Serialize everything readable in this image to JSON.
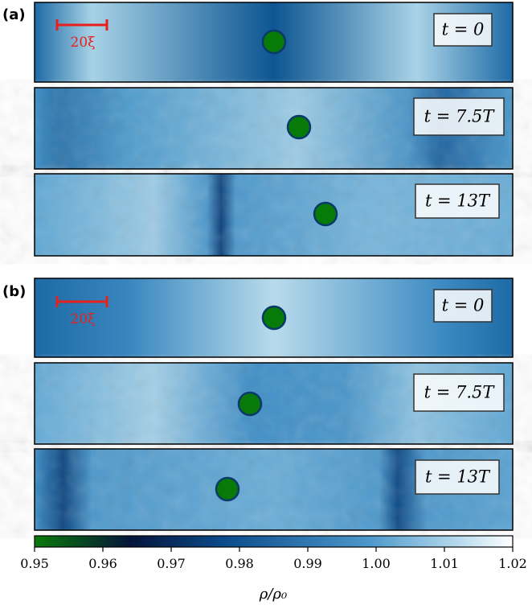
{
  "groups": [
    {
      "label": "(a)",
      "scale_label": "20ξ",
      "panels": [
        {
          "time": "t = 0"
        },
        {
          "time": "t = 7.5T"
        },
        {
          "time": "t = 13T"
        }
      ]
    },
    {
      "label": "(b)",
      "scale_label": "20ξ",
      "panels": [
        {
          "time": "t = 0"
        },
        {
          "time": "t = 7.5T"
        },
        {
          "time": "t = 13T"
        }
      ]
    }
  ],
  "colorbar": {
    "xlim": [
      0.95,
      1.02
    ],
    "xticks": [
      0.95,
      0.96,
      0.97,
      0.98,
      0.99,
      {
        "value": 1,
        "label": "1.00"
      },
      1.01,
      1.02
    ],
    "label": "ρ/ρ₀"
  }
}
